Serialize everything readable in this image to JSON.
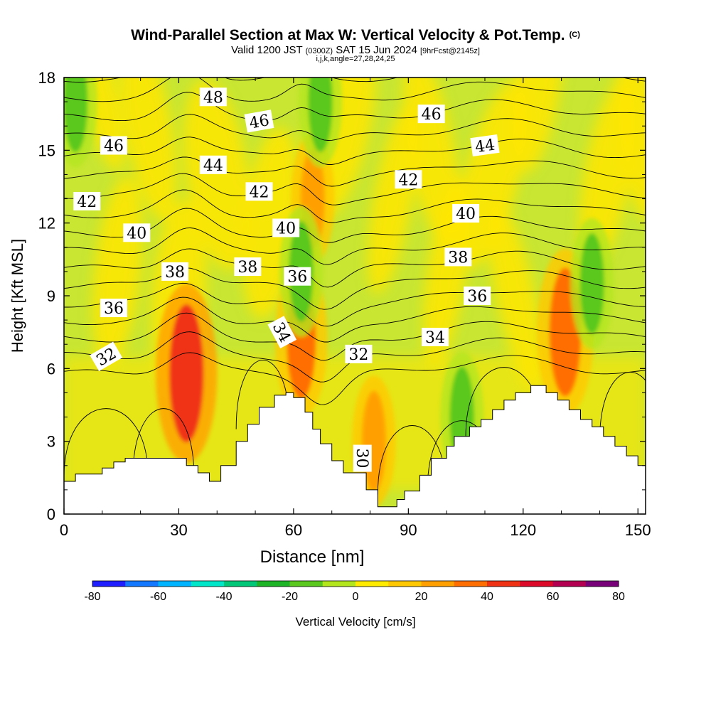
{
  "header": {
    "title": "Wind-Parallel Section at Max W: Vertical Velocity & Pot.Temp.",
    "copyright": "(C)",
    "valid_prefix": "Valid 1200 JST",
    "valid_utc": "(0300Z)",
    "valid_date": "SAT 15 Jun 2024",
    "forecast_info": "[9hrFcst@2145z]",
    "grid_params": "i,j,k,angle=27,28,24,25"
  },
  "chart_data": {
    "type": "heatmap",
    "xlabel": "Distance [nm]",
    "ylabel": "Height [Kft MSL]",
    "xlim": [
      0,
      152
    ],
    "ylim": [
      0,
      18
    ],
    "x_ticks": [
      0,
      30,
      60,
      90,
      120,
      150
    ],
    "y_ticks": [
      0,
      3,
      6,
      9,
      12,
      15,
      18
    ],
    "field": "Vertical Velocity",
    "contour_field": "Potential Temperature",
    "colorbar": {
      "label": "Vertical Velocity [cm/s]",
      "ticks": [
        -80,
        -60,
        -40,
        -20,
        0,
        20,
        40,
        60,
        80
      ],
      "bounds": [
        -80,
        -70,
        -60,
        -50,
        -40,
        -30,
        -20,
        -10,
        0,
        10,
        20,
        30,
        40,
        50,
        60,
        70,
        80
      ],
      "colors": [
        "#1e1eff",
        "#1478ff",
        "#00b4ff",
        "#00e6c8",
        "#00c878",
        "#1eb428",
        "#5ac81e",
        "#b4e61e",
        "#ffeb00",
        "#ffc800",
        "#ffa000",
        "#ff6e00",
        "#f03214",
        "#dc0a28",
        "#b40050",
        "#780078"
      ]
    },
    "terrain_kft": [
      [
        0,
        1.35
      ],
      [
        3,
        1.35
      ],
      [
        3,
        1.65
      ],
      [
        10,
        1.65
      ],
      [
        10,
        1.9
      ],
      [
        13,
        1.9
      ],
      [
        13,
        2.15
      ],
      [
        16,
        2.15
      ],
      [
        16,
        2.3
      ],
      [
        32,
        2.3
      ],
      [
        32,
        2.0
      ],
      [
        35,
        2.0
      ],
      [
        35,
        1.7
      ],
      [
        38,
        1.7
      ],
      [
        38,
        1.35
      ],
      [
        41,
        1.35
      ],
      [
        41,
        2.0
      ],
      [
        45,
        2.0
      ],
      [
        45,
        3.0
      ],
      [
        48,
        3.0
      ],
      [
        48,
        3.7
      ],
      [
        51,
        3.7
      ],
      [
        51,
        4.4
      ],
      [
        55,
        4.4
      ],
      [
        55,
        4.9
      ],
      [
        58,
        4.9
      ],
      [
        58,
        5.0
      ],
      [
        60,
        5.0
      ],
      [
        60,
        4.8
      ],
      [
        63,
        4.8
      ],
      [
        63,
        4.2
      ],
      [
        65,
        4.2
      ],
      [
        65,
        3.5
      ],
      [
        67,
        3.5
      ],
      [
        67,
        2.9
      ],
      [
        70,
        2.9
      ],
      [
        70,
        2.2
      ],
      [
        73,
        2.2
      ],
      [
        73,
        1.7
      ],
      [
        79,
        1.7
      ],
      [
        79,
        1.0
      ],
      [
        82,
        1.0
      ],
      [
        82,
        0.3
      ],
      [
        87,
        0.3
      ],
      [
        87,
        0.6
      ],
      [
        89,
        0.6
      ],
      [
        89,
        0.95
      ],
      [
        93,
        0.95
      ],
      [
        93,
        1.6
      ],
      [
        96,
        1.6
      ],
      [
        96,
        2.3
      ],
      [
        100,
        2.3
      ],
      [
        100,
        2.8
      ],
      [
        102,
        2.8
      ],
      [
        102,
        3.2
      ],
      [
        106,
        3.2
      ],
      [
        106,
        3.6
      ],
      [
        109,
        3.6
      ],
      [
        109,
        3.9
      ],
      [
        112,
        3.9
      ],
      [
        112,
        4.3
      ],
      [
        115,
        4.3
      ],
      [
        115,
        4.7
      ],
      [
        118,
        4.7
      ],
      [
        118,
        5.0
      ],
      [
        122,
        5.0
      ],
      [
        122,
        5.3
      ],
      [
        126,
        5.3
      ],
      [
        126,
        5.0
      ],
      [
        129,
        5.0
      ],
      [
        129,
        4.7
      ],
      [
        132,
        4.7
      ],
      [
        132,
        4.3
      ],
      [
        135,
        4.3
      ],
      [
        135,
        3.9
      ],
      [
        138,
        3.9
      ],
      [
        138,
        3.6
      ],
      [
        141,
        3.6
      ],
      [
        141,
        3.2
      ],
      [
        144,
        3.2
      ],
      [
        144,
        2.8
      ],
      [
        147,
        2.8
      ],
      [
        147,
        2.4
      ],
      [
        150,
        2.4
      ],
      [
        150,
        2.0
      ],
      [
        152,
        2.0
      ]
    ],
    "w_features": [
      {
        "x": 32,
        "y": 5.8,
        "w_cm_s": 40
      },
      {
        "x": 62,
        "y": 7.2,
        "w_cm_s": 30
      },
      {
        "x": 131,
        "y": 7.5,
        "w_cm_s": 35
      },
      {
        "x": 65,
        "y": 13,
        "w_cm_s": 20
      },
      {
        "x": 81,
        "y": 3.0,
        "w_cm_s": 20
      },
      {
        "x": 67,
        "y": 17,
        "w_cm_s": -20
      },
      {
        "x": 62,
        "y": 10,
        "w_cm_s": -20
      },
      {
        "x": 104,
        "y": 4.0,
        "w_cm_s": -20
      },
      {
        "x": 138,
        "y": 9.5,
        "w_cm_s": -20
      },
      {
        "x": 3,
        "y": 17,
        "w_cm_s": -20
      }
    ],
    "contours": {
      "levels": [
        32,
        33,
        34,
        35,
        36,
        37,
        38,
        39,
        40,
        41,
        42,
        43,
        44,
        45,
        46,
        47,
        48
      ],
      "labels": [
        {
          "text": "48",
          "x": 39,
          "y": 17.2,
          "angle": 0
        },
        {
          "text": "46",
          "x": 51,
          "y": 16.2,
          "angle": -10
        },
        {
          "text": "46",
          "x": 13,
          "y": 15.2,
          "angle": 0
        },
        {
          "text": "46",
          "x": 96,
          "y": 16.5,
          "angle": 0
        },
        {
          "text": "44",
          "x": 39,
          "y": 14.4,
          "angle": 0
        },
        {
          "text": "44",
          "x": 110,
          "y": 15.2,
          "angle": -8
        },
        {
          "text": "42",
          "x": 51,
          "y": 13.3,
          "angle": 0
        },
        {
          "text": "42",
          "x": 90,
          "y": 13.8,
          "angle": 0
        },
        {
          "text": "42",
          "x": 6,
          "y": 12.9,
          "angle": 0
        },
        {
          "text": "40",
          "x": 58,
          "y": 11.8,
          "angle": 0
        },
        {
          "text": "40",
          "x": 105,
          "y": 12.4,
          "angle": 0
        },
        {
          "text": "40",
          "x": 19,
          "y": 11.6,
          "angle": 0
        },
        {
          "text": "38",
          "x": 29,
          "y": 10.0,
          "angle": 0
        },
        {
          "text": "38",
          "x": 48,
          "y": 10.2,
          "angle": 0
        },
        {
          "text": "38",
          "x": 103,
          "y": 10.6,
          "angle": 0
        },
        {
          "text": "36",
          "x": 61,
          "y": 9.8,
          "angle": 0
        },
        {
          "text": "36",
          "x": 108,
          "y": 9.0,
          "angle": 0
        },
        {
          "text": "36",
          "x": 13,
          "y": 8.5,
          "angle": 0
        },
        {
          "text": "34",
          "x": 57,
          "y": 7.5,
          "angle": 62
        },
        {
          "text": "34",
          "x": 97,
          "y": 7.3,
          "angle": 0
        },
        {
          "text": "32",
          "x": 11,
          "y": 6.5,
          "angle": -30
        },
        {
          "text": "32",
          "x": 77,
          "y": 6.6,
          "angle": 0
        },
        {
          "text": "30",
          "x": 78,
          "y": 2.3,
          "angle": 90
        }
      ]
    }
  }
}
